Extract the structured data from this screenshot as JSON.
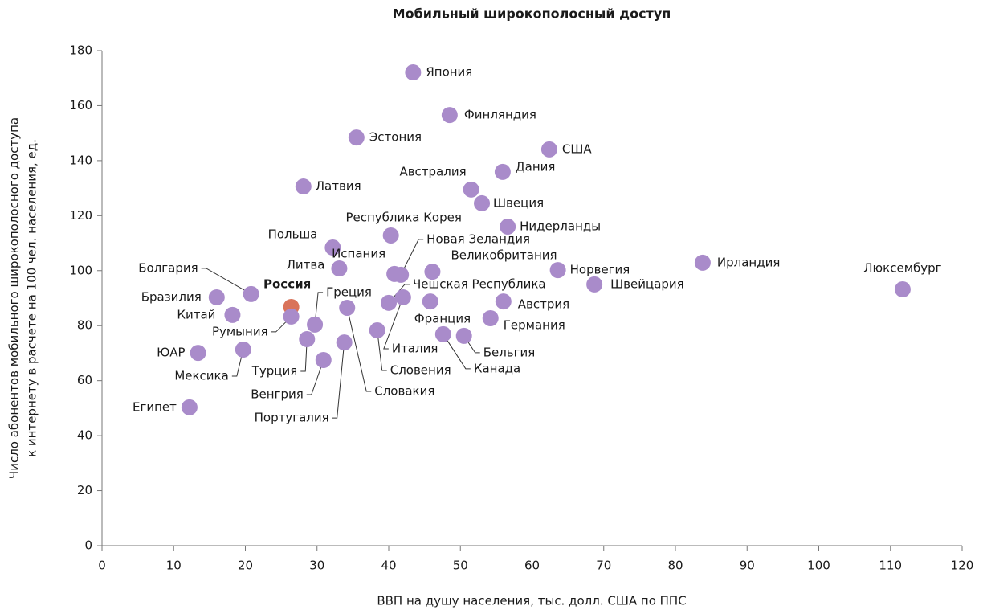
{
  "chart_data": {
    "type": "scatter",
    "title": "Мобильный широкополосный доступ",
    "x_label": "ВВП на душу населения, тыс. долл. США по ППС",
    "y_label": [
      "Число абонентов мобильного широкополосного  доступа",
      "к интернету в расчете на 100 чел. населения, ед."
    ],
    "xlim": [
      0,
      120
    ],
    "xticks": [
      0,
      10,
      20,
      30,
      40,
      50,
      60,
      70,
      80,
      90,
      100,
      110,
      120
    ],
    "ylim": [
      0,
      180
    ],
    "yticks": [
      0,
      20,
      40,
      60,
      80,
      100,
      120,
      140,
      160,
      180
    ],
    "color": "#a98bca",
    "highlight_color": "#d9735a",
    "highlight": "Россия",
    "points": [
      {
        "label": "Япония",
        "x": 43.4,
        "y": 172.1
      },
      {
        "label": "Финляндия",
        "x": 48.5,
        "y": 156.6
      },
      {
        "label": "Эстония",
        "x": 35.5,
        "y": 148.4
      },
      {
        "label": "США",
        "x": 62.4,
        "y": 144.1
      },
      {
        "label": "Дания",
        "x": 55.9,
        "y": 135.9
      },
      {
        "label": "Австралия",
        "x": 51.5,
        "y": 129.5
      },
      {
        "label": "Латвия",
        "x": 28.1,
        "y": 130.6
      },
      {
        "label": "Швеция",
        "x": 53.0,
        "y": 124.5
      },
      {
        "label": "Нидерланды",
        "x": 56.6,
        "y": 116.0
      },
      {
        "label": "Республика Корея",
        "x": 40.3,
        "y": 112.8
      },
      {
        "label": "Польша",
        "x": 32.2,
        "y": 108.4
      },
      {
        "label": "Литва",
        "x": 33.1,
        "y": 100.8
      },
      {
        "label": "Испания",
        "x": 40.8,
        "y": 98.8
      },
      {
        "label": "Новая Зеландия",
        "x": 41.7,
        "y": 98.5
      },
      {
        "label": "Великобритания",
        "x": 46.1,
        "y": 99.6
      },
      {
        "label": "Норвегия",
        "x": 63.6,
        "y": 100.2
      },
      {
        "label": "Ирландия",
        "x": 83.8,
        "y": 102.9
      },
      {
        "label": "Люксембург",
        "x": 111.7,
        "y": 93.2
      },
      {
        "label": "Швейцария",
        "x": 68.7,
        "y": 95.0
      },
      {
        "label": "Болгария",
        "x": 20.8,
        "y": 91.5
      },
      {
        "label": "Бразилия",
        "x": 16.0,
        "y": 90.3
      },
      {
        "label": "Россия",
        "x": 26.4,
        "y": 86.8
      },
      {
        "label": "Китай",
        "x": 18.2,
        "y": 83.9
      },
      {
        "label": "Румыния",
        "x": 26.4,
        "y": 83.3
      },
      {
        "label": "Греция",
        "x": 29.7,
        "y": 80.4
      },
      {
        "label": "Чешская Республика",
        "x": 40.0,
        "y": 88.3
      },
      {
        "label": "Италия",
        "x": 42.0,
        "y": 90.3
      },
      {
        "label": "Франция",
        "x": 45.8,
        "y": 88.8
      },
      {
        "label": "Австрия",
        "x": 56.0,
        "y": 88.8
      },
      {
        "label": "Германия",
        "x": 54.2,
        "y": 82.7
      },
      {
        "label": "Словакия",
        "x": 34.2,
        "y": 86.5
      },
      {
        "label": "Словения",
        "x": 38.4,
        "y": 78.3
      },
      {
        "label": "Канада",
        "x": 47.6,
        "y": 76.9
      },
      {
        "label": "Бельгия",
        "x": 50.5,
        "y": 76.3
      },
      {
        "label": "Турция",
        "x": 28.6,
        "y": 75.1
      },
      {
        "label": "Португалия",
        "x": 33.8,
        "y": 73.9
      },
      {
        "label": "Венгрия",
        "x": 30.9,
        "y": 67.5
      },
      {
        "label": "Мексика",
        "x": 19.7,
        "y": 71.3
      },
      {
        "label": "ЮАР",
        "x": 13.4,
        "y": 70.1
      },
      {
        "label": "Египет",
        "x": 12.2,
        "y": 50.3
      }
    ]
  }
}
